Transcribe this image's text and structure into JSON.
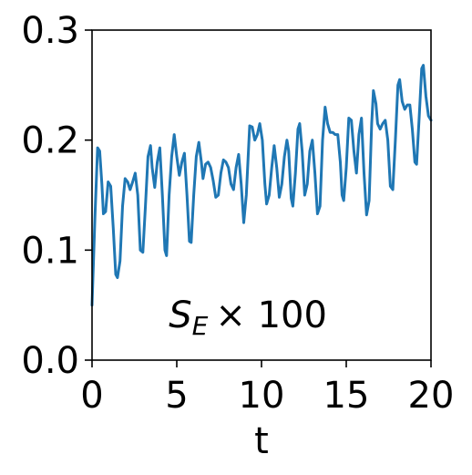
{
  "chart_data": {
    "type": "line",
    "xlabel": "t",
    "ylabel": "",
    "xlim": [
      0,
      20
    ],
    "ylim": [
      0,
      0.3
    ],
    "xticks": [
      0,
      5,
      10,
      15,
      20
    ],
    "xtick_labels": [
      "0",
      "5",
      "10",
      "15",
      "20"
    ],
    "yticks": [
      0,
      0.1,
      0.2,
      0.3
    ],
    "ytick_labels": [
      "0.0",
      "0.1",
      "0.2",
      "0.3"
    ],
    "grid": false,
    "line_color": "#1f77b4",
    "annotation": {
      "symbol": "S",
      "subscript": "E",
      "suffix": "× 100",
      "x": 9.2,
      "y": 0.03
    },
    "series": [
      {
        "values": [
          [
            0.0,
            0.05
          ],
          [
            0.17,
            0.13
          ],
          [
            0.33,
            0.193
          ],
          [
            0.45,
            0.19
          ],
          [
            0.58,
            0.16
          ],
          [
            0.67,
            0.133
          ],
          [
            0.8,
            0.135
          ],
          [
            0.95,
            0.162
          ],
          [
            1.1,
            0.158
          ],
          [
            1.25,
            0.12
          ],
          [
            1.4,
            0.078
          ],
          [
            1.5,
            0.075
          ],
          [
            1.65,
            0.09
          ],
          [
            1.8,
            0.14
          ],
          [
            1.95,
            0.165
          ],
          [
            2.1,
            0.162
          ],
          [
            2.25,
            0.155
          ],
          [
            2.4,
            0.162
          ],
          [
            2.55,
            0.17
          ],
          [
            2.7,
            0.15
          ],
          [
            2.85,
            0.1
          ],
          [
            3.0,
            0.098
          ],
          [
            3.15,
            0.14
          ],
          [
            3.3,
            0.185
          ],
          [
            3.45,
            0.195
          ],
          [
            3.55,
            0.175
          ],
          [
            3.7,
            0.157
          ],
          [
            3.85,
            0.18
          ],
          [
            4.0,
            0.193
          ],
          [
            4.15,
            0.15
          ],
          [
            4.3,
            0.1
          ],
          [
            4.4,
            0.095
          ],
          [
            4.55,
            0.15
          ],
          [
            4.7,
            0.185
          ],
          [
            4.85,
            0.205
          ],
          [
            5.0,
            0.185
          ],
          [
            5.15,
            0.168
          ],
          [
            5.3,
            0.18
          ],
          [
            5.45,
            0.188
          ],
          [
            5.6,
            0.15
          ],
          [
            5.75,
            0.108
          ],
          [
            5.85,
            0.107
          ],
          [
            6.0,
            0.15
          ],
          [
            6.15,
            0.185
          ],
          [
            6.3,
            0.198
          ],
          [
            6.45,
            0.18
          ],
          [
            6.55,
            0.165
          ],
          [
            6.7,
            0.178
          ],
          [
            6.85,
            0.18
          ],
          [
            7.0,
            0.175
          ],
          [
            7.15,
            0.163
          ],
          [
            7.3,
            0.148
          ],
          [
            7.45,
            0.15
          ],
          [
            7.6,
            0.17
          ],
          [
            7.75,
            0.182
          ],
          [
            7.9,
            0.18
          ],
          [
            8.05,
            0.175
          ],
          [
            8.2,
            0.16
          ],
          [
            8.35,
            0.155
          ],
          [
            8.5,
            0.175
          ],
          [
            8.65,
            0.187
          ],
          [
            8.8,
            0.16
          ],
          [
            8.95,
            0.125
          ],
          [
            9.1,
            0.15
          ],
          [
            9.3,
            0.213
          ],
          [
            9.45,
            0.212
          ],
          [
            9.6,
            0.2
          ],
          [
            9.75,
            0.205
          ],
          [
            9.9,
            0.215
          ],
          [
            10.05,
            0.2
          ],
          [
            10.2,
            0.16
          ],
          [
            10.3,
            0.142
          ],
          [
            10.45,
            0.15
          ],
          [
            10.6,
            0.175
          ],
          [
            10.75,
            0.195
          ],
          [
            10.9,
            0.175
          ],
          [
            11.05,
            0.148
          ],
          [
            11.2,
            0.16
          ],
          [
            11.35,
            0.185
          ],
          [
            11.5,
            0.2
          ],
          [
            11.6,
            0.19
          ],
          [
            11.75,
            0.147
          ],
          [
            11.85,
            0.14
          ],
          [
            12.0,
            0.17
          ],
          [
            12.15,
            0.21
          ],
          [
            12.25,
            0.215
          ],
          [
            12.4,
            0.19
          ],
          [
            12.55,
            0.15
          ],
          [
            12.7,
            0.16
          ],
          [
            12.85,
            0.19
          ],
          [
            13.0,
            0.2
          ],
          [
            13.15,
            0.17
          ],
          [
            13.3,
            0.133
          ],
          [
            13.45,
            0.14
          ],
          [
            13.6,
            0.2
          ],
          [
            13.75,
            0.23
          ],
          [
            13.9,
            0.215
          ],
          [
            14.05,
            0.207
          ],
          [
            14.2,
            0.207
          ],
          [
            14.35,
            0.205
          ],
          [
            14.5,
            0.205
          ],
          [
            14.65,
            0.18
          ],
          [
            14.75,
            0.15
          ],
          [
            14.85,
            0.145
          ],
          [
            15.0,
            0.175
          ],
          [
            15.15,
            0.22
          ],
          [
            15.3,
            0.218
          ],
          [
            15.45,
            0.19
          ],
          [
            15.6,
            0.17
          ],
          [
            15.75,
            0.205
          ],
          [
            15.9,
            0.22
          ],
          [
            16.05,
            0.17
          ],
          [
            16.2,
            0.132
          ],
          [
            16.35,
            0.145
          ],
          [
            16.5,
            0.215
          ],
          [
            16.6,
            0.245
          ],
          [
            16.75,
            0.233
          ],
          [
            16.85,
            0.215
          ],
          [
            17.0,
            0.21
          ],
          [
            17.15,
            0.215
          ],
          [
            17.3,
            0.218
          ],
          [
            17.45,
            0.2
          ],
          [
            17.6,
            0.158
          ],
          [
            17.75,
            0.155
          ],
          [
            17.9,
            0.2
          ],
          [
            18.05,
            0.25
          ],
          [
            18.15,
            0.255
          ],
          [
            18.3,
            0.235
          ],
          [
            18.45,
            0.228
          ],
          [
            18.6,
            0.232
          ],
          [
            18.75,
            0.232
          ],
          [
            18.9,
            0.21
          ],
          [
            19.05,
            0.18
          ],
          [
            19.15,
            0.178
          ],
          [
            19.3,
            0.22
          ],
          [
            19.45,
            0.265
          ],
          [
            19.55,
            0.268
          ],
          [
            19.7,
            0.24
          ],
          [
            19.85,
            0.222
          ],
          [
            20.0,
            0.218
          ]
        ]
      }
    ]
  }
}
